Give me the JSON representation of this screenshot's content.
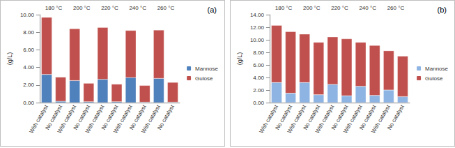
{
  "chart_data": [
    {
      "type": "bar",
      "title": "(a)",
      "y_label": "(g/L)",
      "stacked": true,
      "grid": false,
      "legend": "right",
      "groups": [
        "180 °C",
        "200 °C",
        "220 °C",
        "240 °C",
        "260 °C"
      ],
      "categories": [
        "With catalyst",
        "No catalyst",
        "With catalyst",
        "No catalyst",
        "With catalyst",
        "No catalyst",
        "With catalyst",
        "No catalyst",
        "With catalyst",
        "No catalyst"
      ],
      "series": [
        {
          "name": "Mannose",
          "color": "#4f81bd",
          "values": [
            3.2,
            0.15,
            2.5,
            0.1,
            2.65,
            0.1,
            2.85,
            0.05,
            2.75,
            0.05
          ]
        },
        {
          "name": "Gulose",
          "color": "#c0504d",
          "values": [
            6.5,
            2.75,
            5.9,
            2.1,
            5.9,
            2.0,
            5.35,
            1.9,
            5.5,
            2.25
          ]
        }
      ],
      "ylim": [
        0,
        10
      ],
      "yticks": [
        {
          "value": 0,
          "label": "0.00"
        },
        {
          "value": 2,
          "label": "2.00"
        },
        {
          "value": 4,
          "label": "4.00"
        },
        {
          "value": 6,
          "label": "6.00"
        },
        {
          "value": 8,
          "label": "8.00"
        },
        {
          "value": 10,
          "label": "10.00"
        }
      ]
    },
    {
      "type": "bar",
      "title": "(b)",
      "y_label": "(g/L)",
      "stacked": true,
      "grid": false,
      "legend": "right",
      "groups": [
        "180 °C",
        "200 °C",
        "220 °C",
        "240 °C",
        "260 °C"
      ],
      "categories": [
        "With catalyst",
        "No catalyst",
        "With catalyst",
        "No catalyst",
        "With catalyst",
        "No catalyst",
        "With catalyst",
        "No catalyst",
        "With catalyst",
        "No catalyst"
      ],
      "series": [
        {
          "name": "Mannose",
          "color": "#8eb4e3",
          "values": [
            3.2,
            1.5,
            3.2,
            1.25,
            2.9,
            1.1,
            2.6,
            1.15,
            2.0,
            0.95
          ]
        },
        {
          "name": "Gulose",
          "color": "#c0504d",
          "values": [
            9.1,
            9.8,
            7.7,
            8.35,
            7.55,
            9.05,
            7.0,
            7.95,
            6.25,
            6.45
          ]
        }
      ],
      "ylim": [
        0,
        14
      ],
      "yticks": [
        {
          "value": 0,
          "label": "0.00"
        },
        {
          "value": 2,
          "label": "2.00"
        },
        {
          "value": 4,
          "label": "4.00"
        },
        {
          "value": 6,
          "label": "6.00"
        },
        {
          "value": 8,
          "label": "8.00"
        },
        {
          "value": 10,
          "label": "10.00"
        },
        {
          "value": 12,
          "label": "12.00"
        },
        {
          "value": 14,
          "label": "14.00"
        }
      ]
    }
  ]
}
